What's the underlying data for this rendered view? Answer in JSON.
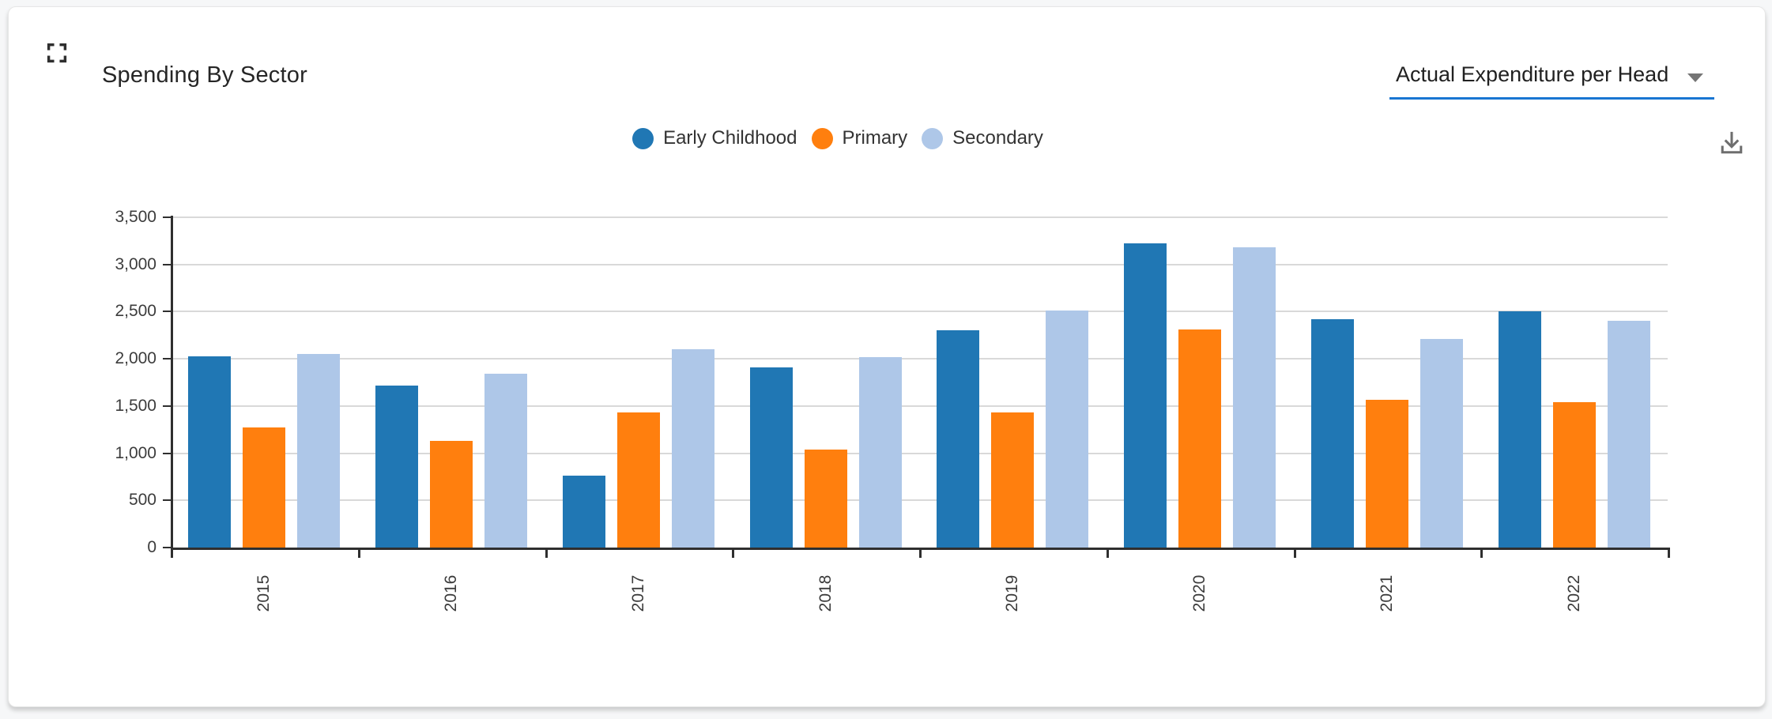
{
  "card": {
    "title": "Spending By Sector",
    "dropdown": {
      "value": "Actual Expenditure per Head"
    },
    "fullscreen_icon": "fullscreen",
    "download_icon": "download"
  },
  "legend": [
    {
      "label": "Early Childhood",
      "color": "#2077b4"
    },
    {
      "label": "Primary",
      "color": "#ff7f0e"
    },
    {
      "label": "Secondary",
      "color": "#aec7e8"
    }
  ],
  "chart_data": {
    "type": "bar",
    "title": "Spending By Sector",
    "categories": [
      "2015",
      "2016",
      "2017",
      "2018",
      "2019",
      "2020",
      "2021",
      "2022"
    ],
    "series": [
      {
        "name": "Early Childhood",
        "color": "#2077b4",
        "values": [
          2030,
          1720,
          760,
          1910,
          2300,
          3220,
          2420,
          2500
        ]
      },
      {
        "name": "Primary",
        "color": "#ff7f0e",
        "values": [
          1270,
          1130,
          1430,
          1040,
          1430,
          2310,
          1570,
          1540
        ]
      },
      {
        "name": "Secondary",
        "color": "#aec7e8",
        "values": [
          2050,
          1840,
          2100,
          2020,
          2510,
          3180,
          2210,
          2400
        ]
      }
    ],
    "xlabel": "",
    "ylabel": "",
    "ylim": [
      0,
      3500
    ],
    "ytick_step": 500,
    "ytick_labels": [
      "0",
      "500",
      "1,000",
      "1,500",
      "2,000",
      "2,500",
      "3,000",
      "3,500"
    ],
    "grid": true,
    "legend_position": "top-center",
    "x_label_rotation": -90
  }
}
